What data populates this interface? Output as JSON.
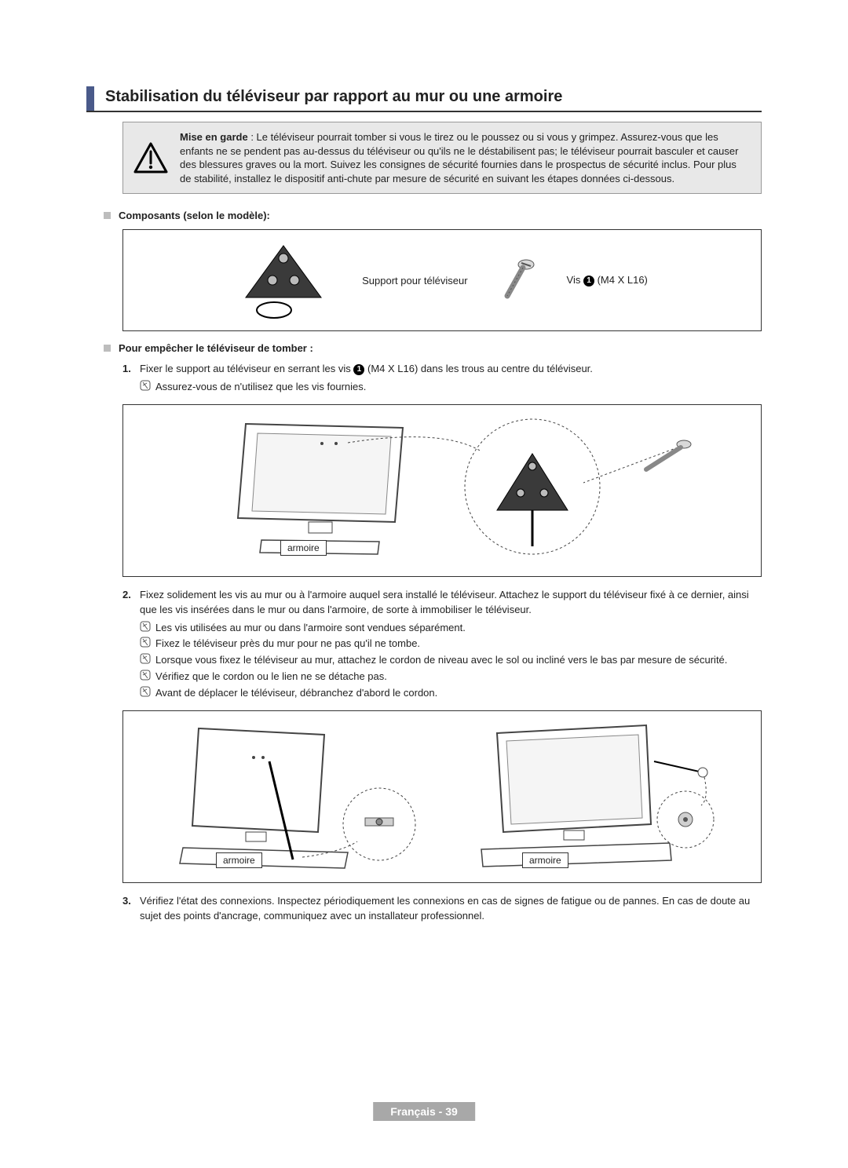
{
  "colors": {
    "accent": "#4a5a8a",
    "heading_border": "#333333",
    "warning_bg": "#e8e8e8",
    "warning_border": "#999999",
    "bullet_fill": "#bdbdbd",
    "figure_border": "#333333",
    "circle_bg": "#000000",
    "circle_fg": "#ffffff",
    "footer_bg": "#a8a8a8",
    "footer_fg": "#ffffff",
    "text": "#222222"
  },
  "typography": {
    "heading_pt": 20,
    "subheading_pt": 13,
    "body_pt": 13,
    "footer_pt": 14,
    "font_family": "Arial"
  },
  "heading": "Stabilisation du téléviseur par rapport au mur ou une armoire",
  "warning": {
    "bold_lead": "Mise en garde",
    "text": " : Le téléviseur pourrait tomber si vous le tirez ou le poussez ou si vous y grimpez. Assurez-vous que les enfants ne se pendent pas au-dessus du téléviseur ou qu'ils ne le déstabilisent pas; le téléviseur pourrait basculer et causer des blessures graves ou la mort. Suivez les consignes de sécurité fournies dans le prospectus de sécurité inclus. Pour plus de stabilité, installez le dispositif anti-chute par mesure de sécurité en suivant les étapes données ci-dessous."
  },
  "section_components": "Composants (selon le modèle):",
  "components": {
    "holder_label": "Support pour téléviseur",
    "screw_label_prefix": "Vis ",
    "screw_label_suffix": " (M4 X L16)",
    "screw_num": "1"
  },
  "section_prevent": "Pour empêcher le téléviseur de tomber :",
  "step1": {
    "num": "1.",
    "text_prefix": "Fixer le support au téléviseur en serrant les vis ",
    "text_suffix": " (M4 X L16) dans les trous au centre du téléviseur.",
    "note": "Assurez-vous de n'utilisez que les vis fournies."
  },
  "step2": {
    "num": "2.",
    "text": "Fixez solidement les vis au mur ou à l'armoire auquel sera installé le téléviseur. Attachez le support du téléviseur fixé à ce dernier, ainsi que les vis insérées dans le mur ou dans l'armoire, de sorte à immobiliser le téléviseur.",
    "notes": [
      "Les vis utilisées au mur ou dans l'armoire sont vendues séparément.",
      "Fixez le téléviseur près du mur pour ne pas qu'il ne tombe.",
      "Lorsque vous fixez le téléviseur au mur, attachez le cordon de niveau avec le sol ou incliné vers le bas par mesure de sécurité.",
      "Vérifiez que le cordon ou le lien ne se détache pas.",
      "Avant de déplacer le téléviseur, débranchez d'abord le cordon."
    ]
  },
  "step3": {
    "num": "3.",
    "text": "Vérifiez l'état des connexions. Inspectez périodiquement les connexions en cas de signes de fatigue ou de pannes. En cas de doute au sujet des points d'ancrage, communiquez avec un installateur professionnel."
  },
  "diagram_label": "armoire",
  "footer": "Français - 39"
}
